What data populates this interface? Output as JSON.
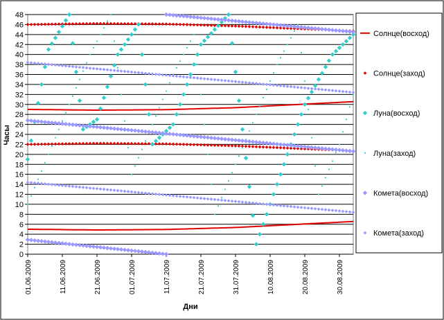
{
  "chart_data": {
    "type": "scatter",
    "title": "",
    "xlabel": "Дни",
    "ylabel": "Часы",
    "ylim": [
      0,
      48
    ],
    "y_ticks": [
      0,
      2,
      4,
      6,
      8,
      10,
      12,
      14,
      16,
      18,
      20,
      22,
      24,
      26,
      28,
      30,
      32,
      34,
      36,
      38,
      40,
      42,
      44,
      46,
      48
    ],
    "x_tick_labels": [
      "01.06.2009",
      "11.06.2009",
      "21.06.2009",
      "01.07.2009",
      "11.07.2009",
      "21.07.2009",
      "31.07.2009",
      "10.08.2009",
      "20.08.2009",
      "30.08.2009"
    ],
    "x_range_days": [
      0,
      94
    ],
    "x_start_label": "01.06.2009",
    "grid": "horizontal",
    "legend_position": "right",
    "series": [
      {
        "name": "Солнце(восход)",
        "color": "#e00000",
        "marker": "line",
        "branches": [
          {
            "x": [
              0,
              20,
              40,
              60,
              94
            ],
            "y": [
              5.0,
              4.85,
              4.95,
              5.35,
              6.55
            ]
          },
          {
            "x": [
              0,
              20,
              40,
              60,
              94
            ],
            "y": [
              29.0,
              28.85,
              28.95,
              29.35,
              30.55
            ]
          }
        ]
      },
      {
        "name": "Солнце(заход)",
        "color": "#e00000",
        "marker": "diamond-small",
        "branches": [
          {
            "x": [
              0,
              20,
              40,
              60,
              94
            ],
            "y": [
              22.0,
              22.2,
              22.1,
              21.7,
              20.7
            ]
          },
          {
            "x": [
              0,
              20,
              40,
              60,
              94
            ],
            "y": [
              46.0,
              46.2,
              46.1,
              45.7,
              44.7
            ]
          }
        ]
      },
      {
        "name": "Луна(восход)",
        "color": "#33cccc",
        "marker": "diamond",
        "branches": [
          {
            "x": [
              0,
              4,
              6,
              12,
              16,
              20,
              26,
              32,
              36,
              42,
              50,
              58,
              66,
              72,
              80,
              88,
              94
            ],
            "y": [
              19.0,
              34.0,
              41.0,
              48.0,
              25.0,
              27.0,
              40.0,
              46.0,
              22.0,
              26.0,
              42.0,
              48.0,
              2.0,
              14.0,
              30.0,
              40.0,
              44.0
            ]
          }
        ]
      },
      {
        "name": "Луна(заход)",
        "color": "#33cccc",
        "marker": "dot",
        "branches": [
          {
            "x": [
              0,
              6,
              12,
              18,
              24,
              30,
              36,
              42,
              48,
              54,
              60,
              66,
              72,
              78,
              84,
              90,
              94
            ],
            "y": [
              10.0,
              20.0,
              30.0,
              40.0,
              48.0,
              16.0,
              26.0,
              36.0,
              44.0,
              8.0,
              18.0,
              28.0,
              38.0,
              46.0,
              12.0,
              22.0,
              32.0
            ]
          }
        ]
      },
      {
        "name": "Комета(восход)",
        "color": "#9999ff",
        "marker": "diamond",
        "branches": [
          {
            "x": [
              0,
              40,
              94
            ],
            "y": [
              2.9,
              0.0,
              null
            ]
          },
          {
            "x": [
              0,
              94
            ],
            "y": [
              26.8,
              20.6
            ]
          },
          {
            "x": [
              40,
              94
            ],
            "y": [
              48.0,
              44.5
            ]
          }
        ]
      },
      {
        "name": "Комета(заход)",
        "color": "#9999ff",
        "marker": "diamond-small",
        "branches": [
          {
            "x": [
              0,
              94
            ],
            "y": [
              14.4,
              8.4
            ]
          },
          {
            "x": [
              0,
              94
            ],
            "y": [
              38.4,
              32.4
            ]
          }
        ]
      }
    ]
  }
}
